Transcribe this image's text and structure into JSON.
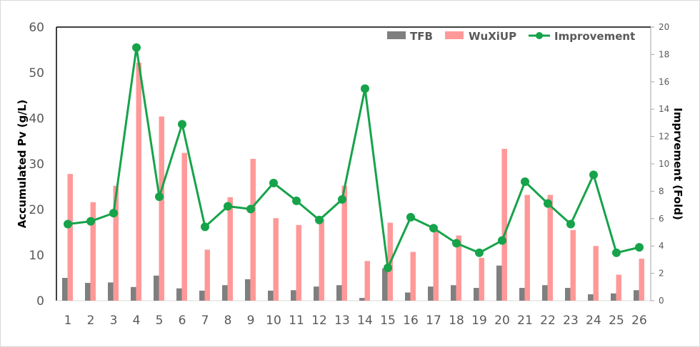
{
  "chart_data": {
    "type": "bar",
    "title": "",
    "xlabel": "",
    "ylabel": "Accumulated Pv (g/L)",
    "y2label": "Imprvement (Fold)",
    "ylim": [
      0,
      60
    ],
    "y2lim": [
      0,
      20
    ],
    "yticks": [
      0,
      10,
      20,
      30,
      40,
      50,
      60
    ],
    "y2ticks": [
      0,
      2,
      4,
      6,
      8,
      10,
      12,
      14,
      16,
      18,
      20
    ],
    "grid": false,
    "legend_position": "top-right inside",
    "categories": [
      "1",
      "2",
      "3",
      "4",
      "5",
      "6",
      "7",
      "8",
      "9",
      "10",
      "11",
      "12",
      "13",
      "14",
      "15",
      "16",
      "17",
      "18",
      "19",
      "20",
      "21",
      "22",
      "23",
      "24",
      "25",
      "26"
    ],
    "series": [
      {
        "name": "TFB",
        "type": "bar",
        "axis": "left",
        "color": "#7f7f7f",
        "values": [
          5.0,
          3.9,
          4.0,
          3.0,
          5.5,
          2.7,
          2.2,
          3.4,
          4.7,
          2.2,
          2.3,
          3.1,
          3.4,
          0.6,
          7.1,
          1.8,
          3.1,
          3.4,
          2.8,
          7.7,
          2.8,
          3.4,
          2.8,
          1.4,
          1.6,
          2.3
        ]
      },
      {
        "name": "WuXiUP",
        "type": "bar",
        "axis": "left",
        "color": "#ff9999",
        "values": [
          27.8,
          21.6,
          25.2,
          52.2,
          40.4,
          32.4,
          11.2,
          22.7,
          31.1,
          18.1,
          16.6,
          17.8,
          25.2,
          8.7,
          17.1,
          10.7,
          15.2,
          14.3,
          9.4,
          33.3,
          23.2,
          23.2,
          15.5,
          12.0,
          5.7,
          9.2
        ]
      },
      {
        "name": "Improvement",
        "type": "line",
        "axis": "right",
        "color": "#16a34a",
        "values": [
          5.6,
          5.8,
          6.4,
          18.5,
          7.6,
          12.9,
          5.4,
          6.9,
          6.7,
          8.6,
          7.3,
          5.9,
          7.4,
          15.5,
          2.4,
          6.1,
          5.3,
          4.2,
          3.5,
          4.4,
          8.7,
          7.1,
          5.6,
          9.2,
          3.5,
          3.9
        ]
      }
    ]
  },
  "legend": {
    "items": [
      {
        "label": "TFB",
        "kind": "bar",
        "color": "#7f7f7f"
      },
      {
        "label": "WuXiUP",
        "kind": "bar",
        "color": "#ff9999"
      },
      {
        "label": "Improvement",
        "kind": "line-marker",
        "color": "#16a34a"
      }
    ]
  },
  "axes": {
    "left_title": "Accumulated Pv (g/L)",
    "right_title": "Imprvement (Fold)"
  }
}
